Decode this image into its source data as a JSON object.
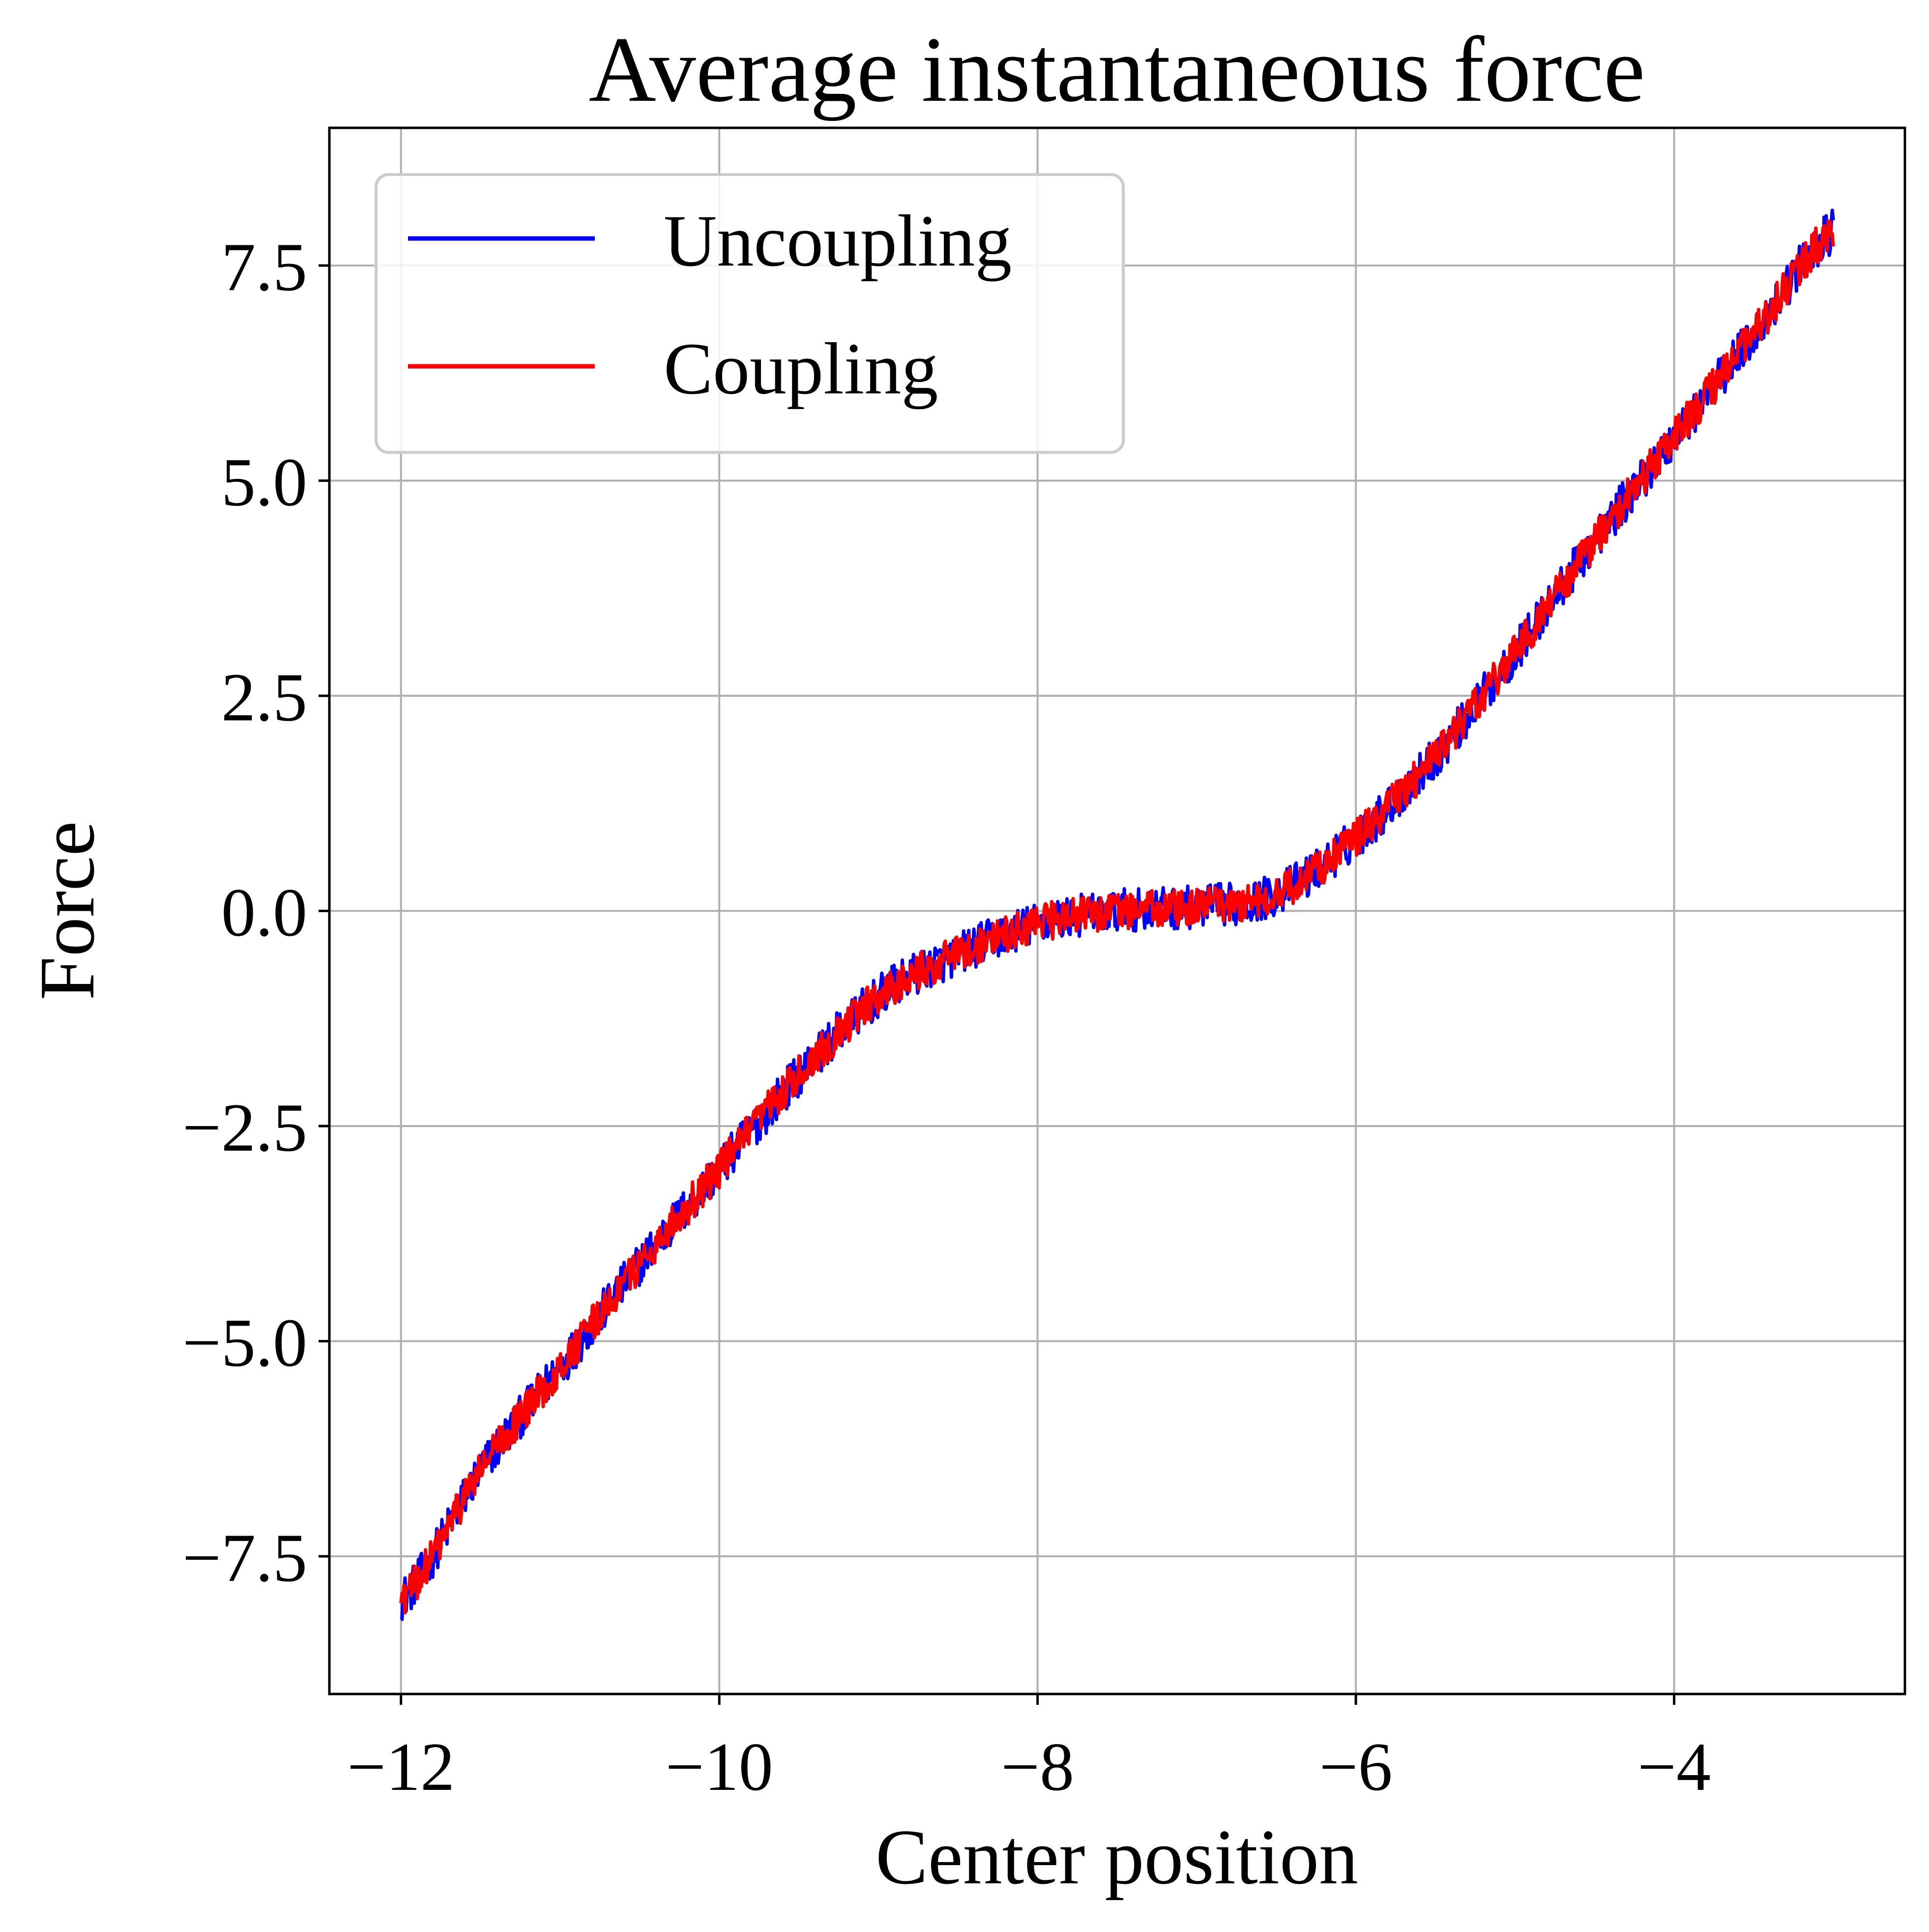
{
  "chart_data": {
    "type": "line",
    "title": "Average instantaneous force",
    "xlabel": "Center position",
    "ylabel": "Force",
    "xlim": [
      -12.45,
      -2.55
    ],
    "ylim": [
      -9.1,
      9.1
    ],
    "xticks": [
      -12,
      -10,
      -8,
      -6,
      -4
    ],
    "xtick_labels": [
      "−12",
      "−10",
      "−8",
      "−6",
      "−4"
    ],
    "yticks": [
      -7.5,
      -5.0,
      -2.5,
      0.0,
      2.5,
      5.0,
      7.5
    ],
    "ytick_labels": [
      "−7.5",
      "−5.0",
      "−2.5",
      "0.0",
      "2.5",
      "5.0",
      "7.5"
    ],
    "grid": true,
    "legend": {
      "position": "top-left",
      "entries": [
        "Uncoupling",
        "Coupling"
      ]
    },
    "x": [
      -12.0,
      -11.5,
      -11.0,
      -10.5,
      -10.0,
      -9.5,
      -9.0,
      -8.5,
      -8.0,
      -7.5,
      -7.0,
      -6.5,
      -6.0,
      -5.5,
      -5.0,
      -4.5,
      -4.0,
      -3.5,
      -3.0
    ],
    "series": [
      {
        "name": "Uncoupling",
        "color": "#0000ff",
        "noise_amplitude": 0.25,
        "values": [
          -8.0,
          -6.5,
          -5.3,
          -4.1,
          -3.0,
          -1.9,
          -1.0,
          -0.5,
          -0.15,
          0.0,
          0.05,
          0.2,
          0.85,
          1.8,
          3.0,
          4.3,
          5.5,
          6.7,
          7.9
        ]
      },
      {
        "name": "Coupling",
        "color": "#ff0000",
        "noise_amplitude": 0.22,
        "values": [
          -8.0,
          -6.5,
          -5.3,
          -4.1,
          -3.0,
          -1.9,
          -1.0,
          -0.5,
          -0.15,
          0.0,
          0.05,
          0.2,
          0.85,
          1.8,
          3.0,
          4.3,
          5.5,
          6.7,
          7.9
        ]
      }
    ]
  }
}
